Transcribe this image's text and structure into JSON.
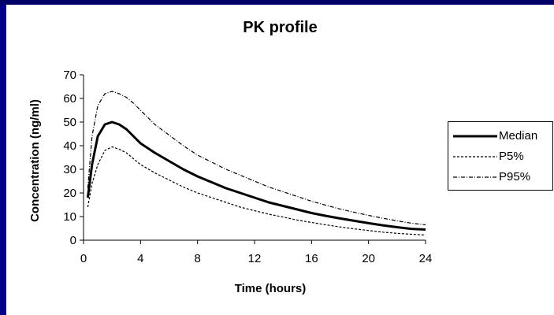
{
  "chart_data": {
    "type": "line",
    "title": "PK profile",
    "xlabel": "Time (hours)",
    "ylabel": "Concentration (ng/ml)",
    "xlim": [
      0,
      24
    ],
    "ylim": [
      0,
      70
    ],
    "xticks": [
      0,
      4,
      8,
      12,
      16,
      20,
      24
    ],
    "yticks": [
      0,
      10,
      20,
      30,
      40,
      50,
      60,
      70
    ],
    "grid": false,
    "legend_position": "right",
    "x": [
      0.3,
      0.6,
      1,
      1.5,
      2,
      2.5,
      3,
      3.5,
      4,
      5,
      6,
      7,
      8,
      9,
      10,
      11,
      12,
      13,
      14,
      15,
      16,
      17,
      18,
      19,
      20,
      21,
      22,
      23,
      24
    ],
    "series": [
      {
        "name": "Median",
        "style": "solid",
        "values": [
          18,
          32,
          44,
          49,
          50,
          49,
          47,
          44,
          41,
          37,
          33.5,
          30,
          27,
          24.5,
          22,
          20,
          18,
          16,
          14.5,
          13,
          11.5,
          10.3,
          9.2,
          8.2,
          7.2,
          6.3,
          5.5,
          4.8,
          4.5
        ]
      },
      {
        "name": "P5%",
        "style": "dashed",
        "values": [
          14,
          24,
          32,
          38,
          39.5,
          38.5,
          37,
          34.5,
          32,
          28.5,
          25.5,
          22.5,
          20,
          18,
          16,
          14,
          12.5,
          11,
          9.8,
          8.5,
          7.5,
          6.5,
          5.6,
          4.8,
          4.1,
          3.4,
          2.9,
          2.5,
          2.2
        ]
      },
      {
        "name": "P95%",
        "style": "dashdot",
        "values": [
          22,
          44,
          57,
          62,
          63,
          62,
          60.5,
          58,
          55,
          49,
          44.5,
          40,
          36,
          33,
          30,
          27.5,
          25,
          22.5,
          20.5,
          18.5,
          16.5,
          14.8,
          13.2,
          11.8,
          10.5,
          9.3,
          8.2,
          7.2,
          6.5
        ]
      }
    ]
  }
}
